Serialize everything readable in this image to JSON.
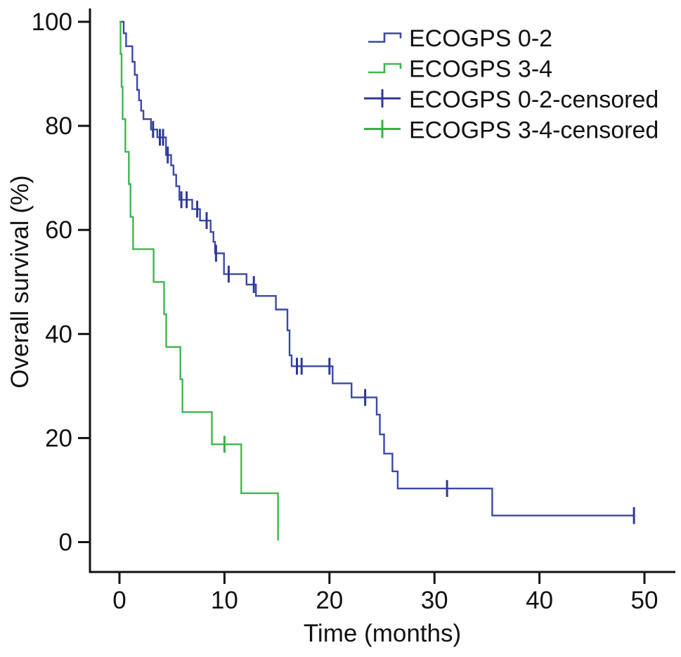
{
  "figure": {
    "background": "#ffffff",
    "axis_color": "#121212",
    "text_color": "#121212"
  },
  "chart_data": {
    "type": "line",
    "subtype": "kaplan_meier_step",
    "title": "",
    "xlabel": "Time (months)",
    "ylabel": "Overall survival (%)",
    "xlim": [
      0,
      50
    ],
    "ylim": [
      0,
      100
    ],
    "x_ticks": [
      0,
      10,
      20,
      30,
      40,
      50
    ],
    "x_tick_labels": [
      "0",
      "10",
      "20",
      "30",
      "40",
      "50"
    ],
    "y_ticks": [
      0,
      20,
      40,
      60,
      80,
      100
    ],
    "y_tick_labels": [
      "0",
      "20",
      "40",
      "60",
      "80",
      "100"
    ],
    "grid": false,
    "legend_position": "top-right",
    "series": [
      {
        "name": "ECOGPS 0-2",
        "color": "#3b49a5",
        "censor_color": "#2e3894",
        "steps": [
          [
            0,
            100
          ],
          [
            0.4,
            97.8
          ],
          [
            0.63,
            95.3
          ],
          [
            1.23,
            92.3
          ],
          [
            1.45,
            89.8
          ],
          [
            1.68,
            86.9
          ],
          [
            1.86,
            84.9
          ],
          [
            2.06,
            82.9
          ],
          [
            2.28,
            81.3
          ],
          [
            3.0,
            79.3
          ],
          [
            3.6,
            77.8
          ],
          [
            4.43,
            74.4
          ],
          [
            4.92,
            72.4
          ],
          [
            5.15,
            70.6
          ],
          [
            5.4,
            68.4
          ],
          [
            5.7,
            65.8
          ],
          [
            6.93,
            64.0
          ],
          [
            7.67,
            61.8
          ],
          [
            8.68,
            59.6
          ],
          [
            8.95,
            57.7
          ],
          [
            9.1,
            55.5
          ],
          [
            9.95,
            51.5
          ],
          [
            12.1,
            49.5
          ],
          [
            13.0,
            47.3
          ],
          [
            14.9,
            44.7
          ],
          [
            16.0,
            40.7
          ],
          [
            16.2,
            35.9
          ],
          [
            16.4,
            33.8
          ],
          [
            20.3,
            30.5
          ],
          [
            22.1,
            27.8
          ],
          [
            24.5,
            24.5
          ],
          [
            24.8,
            20.7
          ],
          [
            25.2,
            17.0
          ],
          [
            26.0,
            13.6
          ],
          [
            26.5,
            10.3
          ],
          [
            35.5,
            5.1
          ]
        ],
        "censored": [
          [
            3.2,
            79.3
          ],
          [
            3.85,
            77.8
          ],
          [
            4.15,
            77.8
          ],
          [
            4.6,
            74.4
          ],
          [
            5.9,
            65.8
          ],
          [
            6.4,
            65.8
          ],
          [
            7.4,
            64.0
          ],
          [
            8.3,
            61.8
          ],
          [
            9.2,
            55.5
          ],
          [
            10.4,
            51.5
          ],
          [
            12.8,
            49.5
          ],
          [
            16.9,
            33.8
          ],
          [
            17.35,
            33.8
          ],
          [
            20.0,
            33.8
          ],
          [
            23.4,
            27.8
          ],
          [
            31.2,
            10.3
          ],
          [
            49.0,
            5.1
          ]
        ],
        "end_time": 49.0
      },
      {
        "name": "ECOGPS 3-4",
        "color": "#3fb64d",
        "censor_color": "#36b048",
        "steps": [
          [
            0,
            100
          ],
          [
            0.1,
            93.8
          ],
          [
            0.2,
            87.5
          ],
          [
            0.3,
            81.3
          ],
          [
            0.56,
            75.0
          ],
          [
            0.89,
            68.8
          ],
          [
            1.05,
            62.5
          ],
          [
            1.3,
            56.3
          ],
          [
            3.25,
            50.0
          ],
          [
            4.25,
            43.8
          ],
          [
            4.45,
            37.5
          ],
          [
            5.8,
            31.3
          ],
          [
            6.0,
            25.0
          ],
          [
            8.8,
            18.8
          ],
          [
            11.6,
            9.4
          ],
          [
            15.1,
            0.3
          ]
        ],
        "censored": [
          [
            10.0,
            18.8
          ]
        ],
        "end_time": 15.1
      }
    ],
    "legend": [
      {
        "label": "ECOGPS 0-2",
        "marker": "step",
        "series": 0
      },
      {
        "label": "ECOGPS 3-4",
        "marker": "step",
        "series": 1
      },
      {
        "label": "ECOGPS 0-2-censored",
        "marker": "plus",
        "series": 0
      },
      {
        "label": "ECOGPS 3-4-censored",
        "marker": "plus",
        "series": 1
      }
    ]
  }
}
